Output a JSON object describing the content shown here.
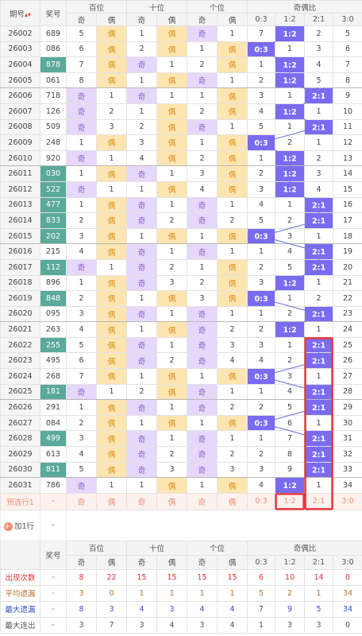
{
  "header": {
    "period": "期号",
    "number": "奖号",
    "groups": [
      "百位",
      "十位",
      "个位",
      "奇偶比"
    ],
    "sub": [
      "奇",
      "偶",
      "奇",
      "偶",
      "奇",
      "偶",
      "0:3",
      "1:2",
      "2:1",
      "3:0"
    ]
  },
  "rows": [
    {
      "period": "26002",
      "number": "689",
      "cells": [
        5,
        "偶",
        1,
        "偶",
        "奇",
        1,
        7,
        "1:2",
        2,
        5
      ]
    },
    {
      "period": "26003",
      "number": "086",
      "cells": [
        6,
        "偶",
        2,
        "偶",
        1,
        "偶",
        "0:3",
        1,
        3,
        6
      ]
    },
    {
      "period": "26004",
      "number": "878",
      "cells": [
        7,
        "偶",
        "奇",
        1,
        2,
        "偶",
        1,
        "1:2",
        4,
        7
      ]
    },
    {
      "period": "26005",
      "number": "061",
      "cells": [
        8,
        "偶",
        1,
        "偶",
        "奇",
        1,
        2,
        "1:2",
        5,
        8
      ]
    },
    {
      "period": "26006",
      "number": "718",
      "cells": [
        "奇",
        1,
        "奇",
        1,
        1,
        "偶",
        3,
        1,
        "2:1",
        9
      ]
    },
    {
      "period": "26007",
      "number": "126",
      "cells": [
        "奇",
        2,
        1,
        "偶",
        2,
        "偶",
        4,
        "1:2",
        1,
        10
      ]
    },
    {
      "period": "26008",
      "number": "509",
      "cells": [
        "奇",
        3,
        2,
        "偶",
        "奇",
        1,
        5,
        1,
        "2:1",
        11
      ]
    },
    {
      "period": "26009",
      "number": "248",
      "cells": [
        1,
        "偶",
        3,
        "偶",
        1,
        "偶",
        "0:3",
        2,
        1,
        12
      ]
    },
    {
      "period": "26010",
      "number": "920",
      "cells": [
        "奇",
        1,
        4,
        "偶",
        2,
        "偶",
        1,
        "1:2",
        2,
        13
      ]
    },
    {
      "period": "26011",
      "number": "030",
      "cells": [
        1,
        "偶",
        "奇",
        1,
        3,
        "偶",
        2,
        "1:2",
        3,
        14
      ]
    },
    {
      "period": "26012",
      "number": "522",
      "cells": [
        "奇",
        1,
        1,
        "偶",
        4,
        "偶",
        3,
        "1:2",
        4,
        15
      ]
    },
    {
      "period": "26013",
      "number": "477",
      "cells": [
        1,
        "偶",
        "奇",
        1,
        "奇",
        1,
        4,
        1,
        "2:1",
        16
      ]
    },
    {
      "period": "26014",
      "number": "833",
      "cells": [
        2,
        "偶",
        "奇",
        2,
        "奇",
        2,
        5,
        2,
        "2:1",
        17
      ]
    },
    {
      "period": "26015",
      "number": "202",
      "cells": [
        3,
        "偶",
        1,
        "偶",
        1,
        "偶",
        "0:3",
        3,
        1,
        18
      ]
    },
    {
      "period": "26016",
      "number": "215",
      "cells": [
        4,
        "偶",
        "奇",
        1,
        "奇",
        1,
        1,
        4,
        "2:1",
        19
      ]
    },
    {
      "period": "26017",
      "number": "112",
      "cells": [
        "奇",
        1,
        "奇",
        2,
        1,
        "偶",
        2,
        5,
        "2:1",
        20
      ]
    },
    {
      "period": "26018",
      "number": "896",
      "cells": [
        1,
        "偶",
        "奇",
        3,
        2,
        "偶",
        3,
        "1:2",
        1,
        21
      ]
    },
    {
      "period": "26019",
      "number": "848",
      "cells": [
        2,
        "偶",
        1,
        "偶",
        3,
        "偶",
        "0:3",
        1,
        2,
        22
      ]
    },
    {
      "period": "26020",
      "number": "095",
      "cells": [
        3,
        "偶",
        "奇",
        1,
        "奇",
        1,
        1,
        2,
        "2:1",
        23
      ]
    },
    {
      "period": "26021",
      "number": "263",
      "cells": [
        4,
        "偶",
        1,
        "偶",
        "奇",
        2,
        2,
        "1:2",
        1,
        24
      ]
    },
    {
      "period": "26022",
      "number": "255",
      "cells": [
        5,
        "偶",
        "奇",
        1,
        "奇",
        3,
        3,
        1,
        "2:1",
        25
      ]
    },
    {
      "period": "26023",
      "number": "495",
      "cells": [
        6,
        "偶",
        "奇",
        2,
        "奇",
        4,
        4,
        2,
        "2:1",
        26
      ]
    },
    {
      "period": "26024",
      "number": "268",
      "cells": [
        7,
        "偶",
        1,
        "偶",
        1,
        "偶",
        "0:3",
        3,
        1,
        27
      ]
    },
    {
      "period": "26025",
      "number": "181",
      "cells": [
        "奇",
        1,
        2,
        "偶",
        "奇",
        1,
        1,
        4,
        "2:1",
        28
      ]
    },
    {
      "period": "26026",
      "number": "291",
      "cells": [
        1,
        "偶",
        "奇",
        1,
        "奇",
        2,
        2,
        5,
        "2:1",
        29
      ]
    },
    {
      "period": "26027",
      "number": "084",
      "cells": [
        2,
        "偶",
        1,
        "偶",
        1,
        "偶",
        "0:3",
        6,
        1,
        30
      ]
    },
    {
      "period": "26028",
      "number": "499",
      "cells": [
        3,
        "偶",
        "奇",
        1,
        "奇",
        1,
        1,
        7,
        "2:1",
        31
      ]
    },
    {
      "period": "26029",
      "number": "613",
      "cells": [
        4,
        "偶",
        "奇",
        2,
        "奇",
        2,
        2,
        8,
        "2:1",
        32
      ]
    },
    {
      "period": "26030",
      "number": "811",
      "cells": [
        5,
        "偶",
        "奇",
        3,
        "奇",
        3,
        3,
        9,
        "2:1",
        33
      ]
    },
    {
      "period": "26031",
      "number": "786",
      "cells": [
        "奇",
        1,
        1,
        "偶",
        1,
        "偶",
        4,
        "1:2",
        1,
        34
      ]
    }
  ],
  "preselect": {
    "label": "预选行1",
    "number": "-",
    "cells": [
      "奇",
      "偶",
      "奇",
      "偶",
      "奇",
      "偶",
      "0:3",
      "1:2",
      "2:1",
      "3:0"
    ]
  },
  "add_row": {
    "label": "加1行",
    "value": "-"
  },
  "footer": {
    "number": "奖号",
    "groups": [
      "百位",
      "十位",
      "个位",
      "奇偶比"
    ],
    "sub": [
      "奇",
      "偶",
      "奇",
      "偶",
      "奇",
      "偶",
      "0:3",
      "1:2",
      "2:1",
      "3:0"
    ]
  },
  "stats": [
    {
      "label": "出现次数",
      "number": "-",
      "values": [
        8,
        22,
        15,
        15,
        15,
        15,
        6,
        10,
        14,
        0
      ]
    },
    {
      "label": "平均遗漏",
      "number": "-",
      "values": [
        3,
        0,
        1,
        1,
        1,
        1,
        5,
        2,
        1,
        34
      ]
    },
    {
      "label": "最大遗漏",
      "number": "-",
      "values": [
        8,
        3,
        4,
        3,
        4,
        4,
        7,
        9,
        5,
        34
      ]
    },
    {
      "label": "最大连出",
      "number": "-",
      "values": [
        3,
        7,
        3,
        4,
        3,
        4,
        1,
        3,
        3,
        0
      ]
    }
  ]
}
